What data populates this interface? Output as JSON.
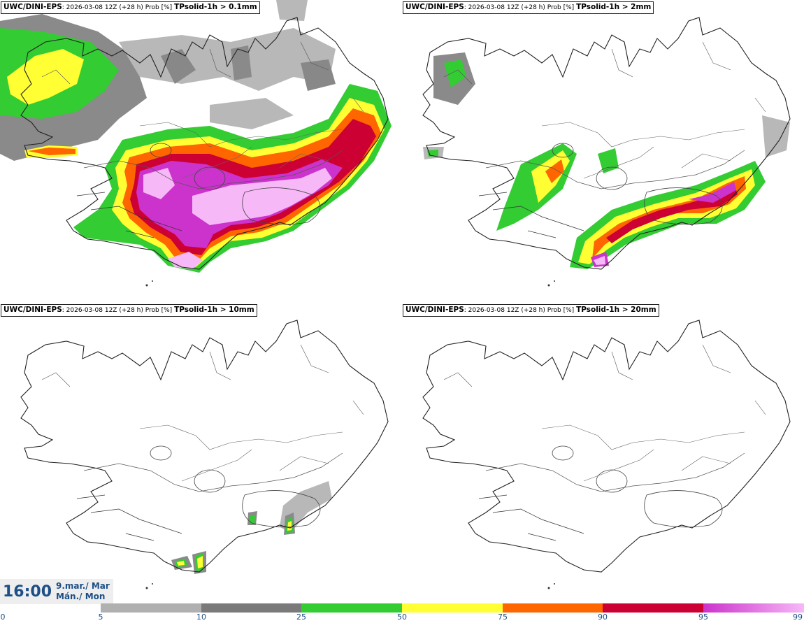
{
  "panels": [
    {
      "model": "UWC/DINI-EPS",
      "run": "2026-03-08 12Z (+28 h) Prob [%]",
      "param": "TPsolid-1h > 0.1mm"
    },
    {
      "model": "UWC/DINI-EPS",
      "run": "2026-03-08 12Z (+28 h) Prob [%]",
      "param": "TPsolid-1h > 2mm"
    },
    {
      "model": "UWC/DINI-EPS",
      "run": "2026-03-08 12Z (+28 h) Prob [%]",
      "param": "TPsolid-1h > 10mm"
    },
    {
      "model": "UWC/DINI-EPS",
      "run": "2026-03-08 12Z (+28 h) Prob [%]",
      "param": "TPsolid-1h > 20mm"
    }
  ],
  "time": {
    "hour": "16:00",
    "date_line1": "9.mar./ Mar",
    "date_line2": "Mán./ Mon"
  },
  "colorbar": {
    "ticks": [
      "0",
      "5",
      "10",
      "25",
      "50",
      "75",
      "90",
      "95",
      "99"
    ],
    "colors": [
      "#ffffff",
      "#b0b0b0",
      "#7a7a7a",
      "#33cc33",
      "#ffff33",
      "#ff6600",
      "#cc0033",
      "#cc33cc",
      "#f7b8f7"
    ]
  }
}
